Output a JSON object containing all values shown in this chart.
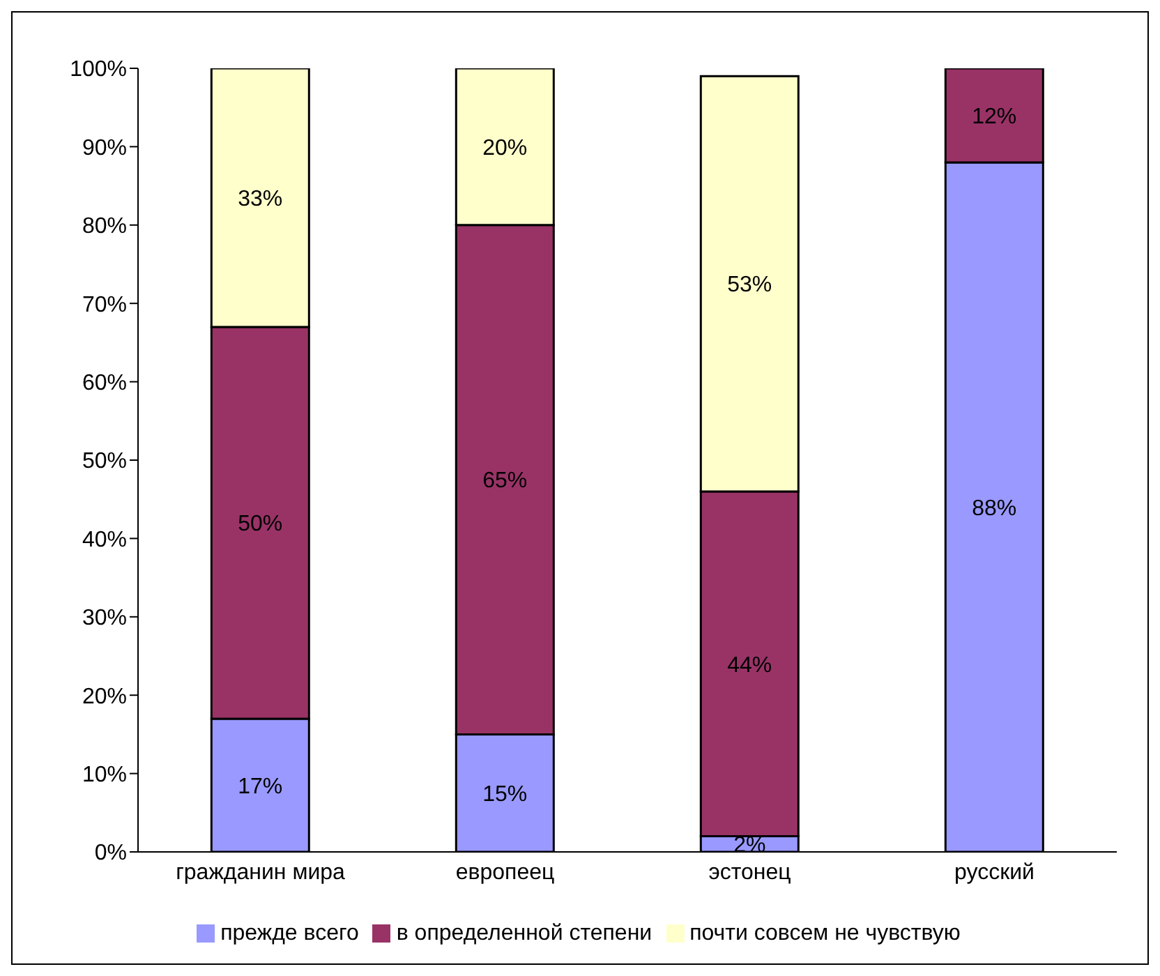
{
  "chart_data": {
    "type": "bar",
    "stacked": true,
    "categories": [
      "гражданин мира",
      "европеец",
      "эстонец",
      "русский"
    ],
    "series": [
      {
        "name": "прежде всего",
        "color": "#9999ff",
        "values": [
          17,
          15,
          2,
          88
        ],
        "value_labels": [
          "17%",
          "15%",
          "2%",
          "88%"
        ]
      },
      {
        "name": "в определенной степени",
        "color": "#993366",
        "values": [
          50,
          65,
          44,
          12
        ],
        "value_labels": [
          "50%",
          "65%",
          "44%",
          "12%"
        ]
      },
      {
        "name": "почти совсем не чувствую",
        "color": "#ffffcc",
        "values": [
          33,
          20,
          53,
          null
        ],
        "value_labels": [
          "33%",
          "20%",
          "53%",
          null
        ]
      }
    ],
    "ylim": [
      0,
      100
    ],
    "yticks": [
      {
        "value": 0,
        "label": "0%"
      },
      {
        "value": 10,
        "label": "10%"
      },
      {
        "value": 20,
        "label": "20%"
      },
      {
        "value": 30,
        "label": "30%"
      },
      {
        "value": 40,
        "label": "40%"
      },
      {
        "value": 50,
        "label": "50%"
      },
      {
        "value": 60,
        "label": "60%"
      },
      {
        "value": 70,
        "label": "70%"
      },
      {
        "value": 80,
        "label": "80%"
      },
      {
        "value": 90,
        "label": "90%"
      },
      {
        "value": 100,
        "label": "100%"
      }
    ],
    "grid": false,
    "legend": "bottom"
  }
}
